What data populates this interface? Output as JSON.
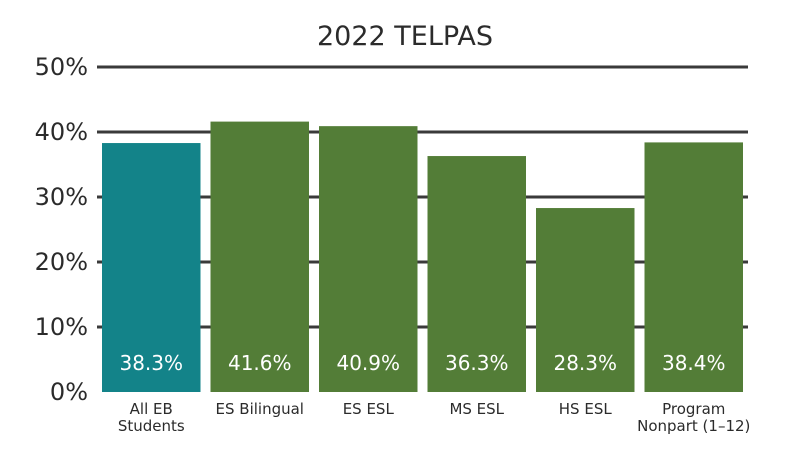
{
  "chart_data": {
    "type": "bar",
    "title": "2022 TELPAS",
    "xlabel": "",
    "ylabel": "",
    "categories": [
      [
        "All EB",
        "Students"
      ],
      [
        "ES Bilingual"
      ],
      [
        "ES ESL"
      ],
      [
        "MS ESL"
      ],
      [
        "HS ESL"
      ],
      [
        "Program",
        "Nonpart (1–12)"
      ]
    ],
    "values": [
      38.3,
      41.6,
      40.9,
      36.3,
      28.3,
      38.4
    ],
    "value_labels": [
      "38.3%",
      "41.6%",
      "40.9%",
      "36.3%",
      "28.3%",
      "38.4%"
    ],
    "bar_colors": [
      "#138389",
      "#537d37",
      "#537d37",
      "#537d37",
      "#537d37",
      "#537d37"
    ],
    "ylim": [
      0,
      50
    ],
    "yticks": [
      "0%",
      "10%",
      "20%",
      "30%",
      "40%",
      "50%"
    ],
    "grid": true,
    "legend": "none"
  }
}
